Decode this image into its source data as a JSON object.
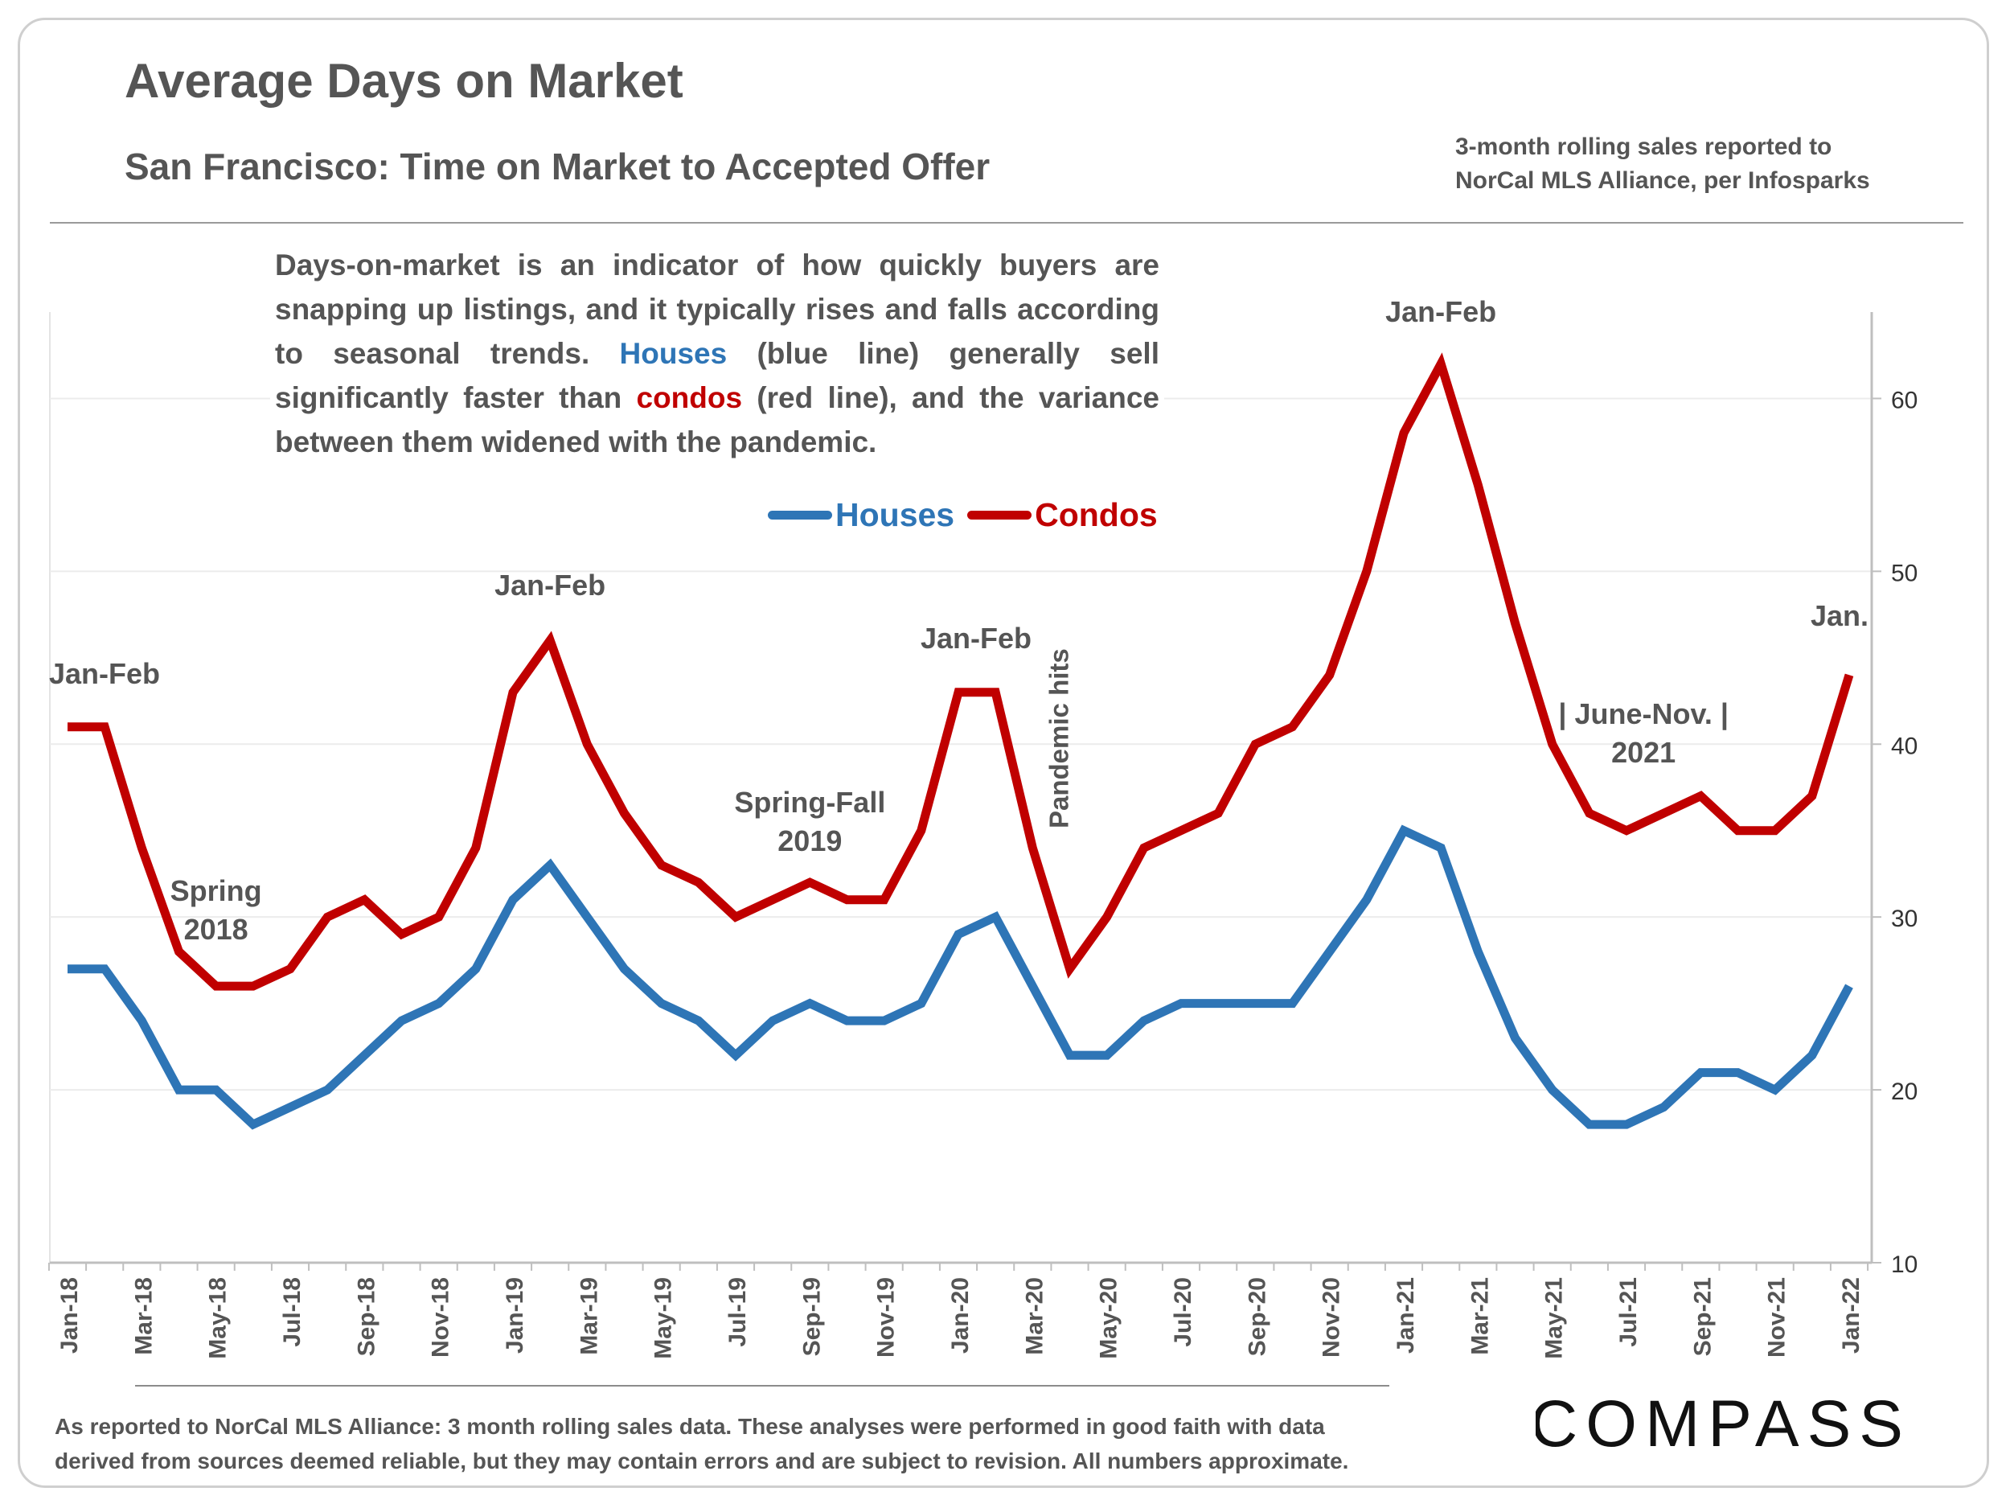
{
  "page": {
    "title": "Average Days on Market",
    "subtitle": "San Francisco: Time on Market to Accepted Offer",
    "source_line1": "3-month rolling sales reported to",
    "source_line2": "NorCal MLS Alliance, per Infosparks",
    "description": {
      "part1": "Days-on-market is an indicator of how quickly buyers are snapping up listings, and it typically rises and falls according to seasonal trends. ",
      "houses_word": "Houses",
      "part2": " (blue line) generally sell significantly faster than ",
      "condos_word": "condos",
      "part3": " (red line), and the variance between them widened with the pandemic."
    },
    "footnote_line1": "As reported to NorCal MLS Alliance: 3 month rolling sales data. These analyses were performed in good faith with data",
    "footnote_line2": "derived from sources deemed reliable, but they may contain errors and are subject to revision. All numbers approximate.",
    "logo_text": "COMPASS"
  },
  "chart_data": {
    "type": "line",
    "title": "Average Days on Market",
    "xlabel": "",
    "ylabel": "",
    "ylim": [
      10,
      65
    ],
    "y_ticks": [
      10,
      20,
      30,
      40,
      50,
      60
    ],
    "grid": true,
    "legend_position": "top-center",
    "x_tick_labels": [
      "Jan-18",
      "Mar-18",
      "May-18",
      "Jul-18",
      "Sep-18",
      "Nov-18",
      "Jan-19",
      "Mar-19",
      "May-19",
      "Jul-19",
      "Sep-19",
      "Nov-19",
      "Jan-20",
      "Mar-20",
      "May-20",
      "Jul-20",
      "Sep-20",
      "Nov-20",
      "Jan-21",
      "Mar-21",
      "May-21",
      "Jul-21",
      "Sep-21",
      "Nov-21",
      "Jan-22"
    ],
    "x": [
      "Jan-18",
      "Feb-18",
      "Mar-18",
      "Apr-18",
      "May-18",
      "Jun-18",
      "Jul-18",
      "Aug-18",
      "Sep-18",
      "Oct-18",
      "Nov-18",
      "Dec-18",
      "Jan-19",
      "Feb-19",
      "Mar-19",
      "Apr-19",
      "May-19",
      "Jun-19",
      "Jul-19",
      "Aug-19",
      "Sep-19",
      "Oct-19",
      "Nov-19",
      "Dec-19",
      "Jan-20",
      "Feb-20",
      "Mar-20",
      "Apr-20",
      "May-20",
      "Jun-20",
      "Jul-20",
      "Aug-20",
      "Sep-20",
      "Oct-20",
      "Nov-20",
      "Dec-20",
      "Jan-21",
      "Feb-21",
      "Mar-21",
      "Apr-21",
      "May-21",
      "Jun-21",
      "Jul-21",
      "Aug-21",
      "Sep-21",
      "Oct-21",
      "Nov-21",
      "Dec-21",
      "Jan-22"
    ],
    "series": [
      {
        "name": "Houses",
        "color": "#2e75b6",
        "values": [
          27,
          27,
          24,
          20,
          20,
          18,
          19,
          20,
          22,
          24,
          25,
          27,
          31,
          33,
          30,
          27,
          25,
          24,
          22,
          24,
          25,
          24,
          24,
          25,
          29,
          30,
          26,
          22,
          22,
          24,
          25,
          25,
          25,
          25,
          28,
          31,
          35,
          34,
          28,
          23,
          20,
          18,
          18,
          19,
          21,
          21,
          20,
          22,
          26
        ]
      },
      {
        "name": "Condos",
        "color": "#c00000",
        "values": [
          41,
          41,
          34,
          28,
          26,
          26,
          27,
          30,
          31,
          29,
          30,
          34,
          43,
          46,
          40,
          36,
          33,
          32,
          30,
          31,
          32,
          31,
          31,
          35,
          43,
          43,
          34,
          27,
          30,
          34,
          35,
          36,
          40,
          41,
          44,
          50,
          58,
          62,
          55,
          47,
          40,
          36,
          35,
          36,
          37,
          35,
          35,
          37,
          44
        ]
      }
    ],
    "annotations": [
      {
        "text": "Jan-Feb",
        "at": "Jan-18"
      },
      {
        "text": "Spring",
        "at": "May-18"
      },
      {
        "text": "2018",
        "at": "May-18"
      },
      {
        "text": "Jan-Feb",
        "at": "Feb-19"
      },
      {
        "text": "Spring-Fall",
        "at": "Sep-19"
      },
      {
        "text": "2019",
        "at": "Sep-19"
      },
      {
        "text": "Jan-Feb",
        "at": "Jan-20"
      },
      {
        "text": "Pandemic hits",
        "at": "Apr-20"
      },
      {
        "text": "Jan-Feb",
        "at": "Feb-21"
      },
      {
        "text": "|  June-Nov.  |",
        "at": "Aug-21"
      },
      {
        "text": "2021",
        "at": "Aug-21"
      },
      {
        "text": "Jan.",
        "at": "Jan-22"
      }
    ]
  }
}
